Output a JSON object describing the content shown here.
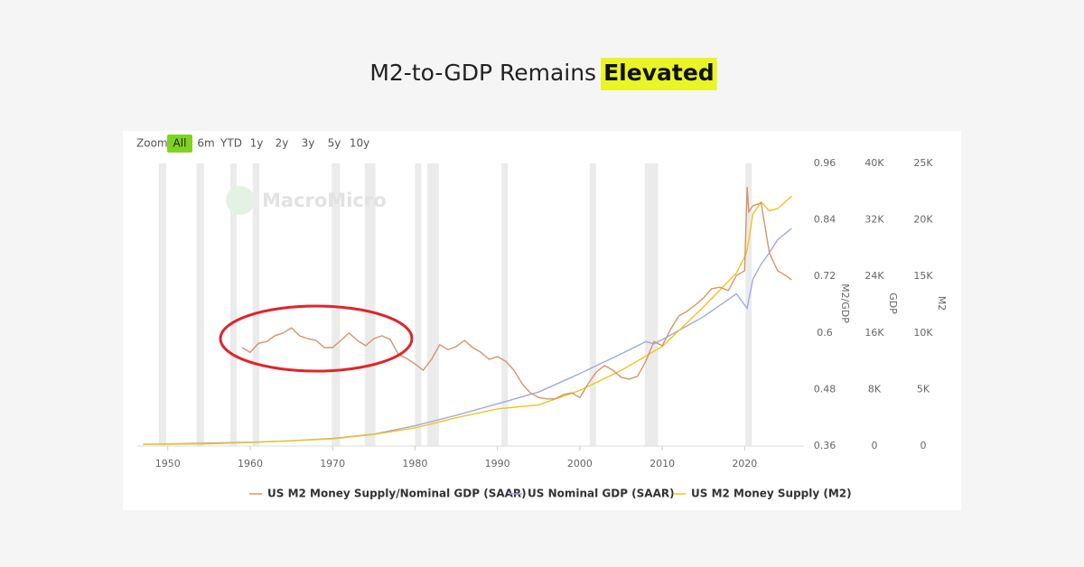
{
  "chart_data": {
    "type": "line",
    "title": "M2-to-GDP Remains",
    "title_highlight": "Elevated",
    "zoom_label": "Zoom",
    "zoom_options": [
      "All",
      "6m",
      "YTD",
      "1y",
      "2y",
      "3y",
      "5y",
      "10y"
    ],
    "watermark": "MacroMicro",
    "xlim": [
      1946.3,
      2027.2
    ],
    "xticks": [
      1950,
      1960,
      1970,
      1980,
      1990,
      2000,
      2010,
      2020
    ],
    "ylim": [
      0.36,
      0.96
    ],
    "yticks": [
      0.36,
      0.48,
      0.6,
      0.72,
      0.84,
      0.96
    ],
    "ylabel": "M2/GDP",
    "y2lim": [
      0,
      40000
    ],
    "y2ticks": [
      0,
      {
        "value": 8000,
        "label": "8K"
      },
      {
        "value": 16000,
        "label": "16K"
      },
      {
        "value": 24000,
        "label": "24K"
      },
      {
        "value": 32000,
        "label": "32K"
      },
      {
        "value": 40000,
        "label": "40K"
      }
    ],
    "y2label": "GDP",
    "y3lim": [
      0,
      25000
    ],
    "y3ticks": [
      0,
      {
        "value": 5000,
        "label": "5K"
      },
      {
        "value": 10000,
        "label": "10K"
      },
      {
        "value": 15000,
        "label": "15K"
      },
      {
        "value": 20000,
        "label": "20K"
      },
      {
        "value": 25000,
        "label": "25K"
      }
    ],
    "y3label": "M2",
    "recessions": [
      [
        1948.9,
        1949.8
      ],
      [
        1953.5,
        1954.4
      ],
      [
        1957.6,
        1958.3
      ],
      [
        1960.3,
        1961.1
      ],
      [
        1969.9,
        1970.9
      ],
      [
        1973.9,
        1975.2
      ],
      [
        1980.0,
        1980.5
      ],
      [
        1981.5,
        1982.9
      ],
      [
        1990.5,
        1991.2
      ],
      [
        2001.2,
        2001.9
      ],
      [
        2007.9,
        2009.5
      ],
      [
        2020.1,
        2020.3
      ]
    ],
    "series": [
      {
        "name": "US M2 Money Supply/Nominal GDP (SAAR)",
        "color": "#d4956a",
        "axis": "y",
        "x": [
          1959,
          1960,
          1961,
          1962,
          1963,
          1964,
          1965,
          1966,
          1967,
          1968,
          1969,
          1970,
          1971,
          1972,
          1973,
          1974,
          1975,
          1976,
          1977,
          1978,
          1979,
          1980,
          1981,
          1982,
          1983,
          1984,
          1985,
          1986,
          1987,
          1988,
          1989,
          1990,
          1991,
          1992,
          1993,
          1994,
          1995,
          1996,
          1997,
          1998,
          1999,
          2000,
          2001,
          2002,
          2003,
          2004,
          2005,
          2006,
          2007,
          2008,
          2009,
          2010,
          2011,
          2012,
          2013,
          2014,
          2015,
          2016,
          2017,
          2018,
          2019,
          2020,
          2020.3,
          2020.5,
          2021,
          2022,
          2023,
          2024,
          2025,
          2025.7
        ],
        "values": [
          0.569,
          0.559,
          0.578,
          0.582,
          0.594,
          0.6,
          0.611,
          0.594,
          0.588,
          0.584,
          0.569,
          0.569,
          0.584,
          0.6,
          0.584,
          0.573,
          0.588,
          0.594,
          0.586,
          0.554,
          0.546,
          0.534,
          0.521,
          0.544,
          0.575,
          0.565,
          0.571,
          0.584,
          0.569,
          0.559,
          0.544,
          0.55,
          0.54,
          0.521,
          0.492,
          0.473,
          0.463,
          0.46,
          0.46,
          0.469,
          0.473,
          0.463,
          0.492,
          0.517,
          0.531,
          0.521,
          0.506,
          0.502,
          0.508,
          0.54,
          0.582,
          0.573,
          0.607,
          0.636,
          0.646,
          0.659,
          0.674,
          0.694,
          0.697,
          0.69,
          0.722,
          0.732,
          0.91,
          0.857,
          0.87,
          0.876,
          0.77,
          0.732,
          0.722,
          0.713
        ]
      },
      {
        "name": "US Nominal GDP (SAAR)",
        "color": "#9fa8e8",
        "axis": "y2",
        "x": [
          1947,
          1950,
          1955,
          1960,
          1965,
          1970,
          1975,
          1980,
          1985,
          1990,
          1995,
          2000,
          2005,
          2008,
          2009,
          2010,
          2015,
          2019,
          2020.3,
          2021,
          2022,
          2023,
          2024,
          2025.7
        ],
        "values": [
          244,
          300,
          426,
          543,
          743,
          1073,
          1685,
          2857,
          4339,
          5963,
          7640,
          10251,
          13039,
          14770,
          14478,
          15049,
          18295,
          21540,
          19500,
          23594,
          25744,
          27361,
          29184,
          30800
        ]
      },
      {
        "name": "US M2 Money Supply (M2)",
        "color": "#f0c419",
        "axis": "y3",
        "x": [
          1947,
          1950,
          1955,
          1959,
          1960,
          1965,
          1970,
          1975,
          1980,
          1985,
          1990,
          1995,
          2000,
          2005,
          2010,
          2015,
          2019,
          2020.2,
          2020.5,
          2021,
          2022,
          2023,
          2024,
          2025.7
        ],
        "values": [
          150,
          160,
          200,
          287,
          300,
          460,
          627,
          1020,
          1600,
          2500,
          3280,
          3640,
          4920,
          6680,
          8800,
          12300,
          15300,
          17000,
          18200,
          20500,
          21600,
          20800,
          21000,
          22100
        ]
      }
    ]
  }
}
